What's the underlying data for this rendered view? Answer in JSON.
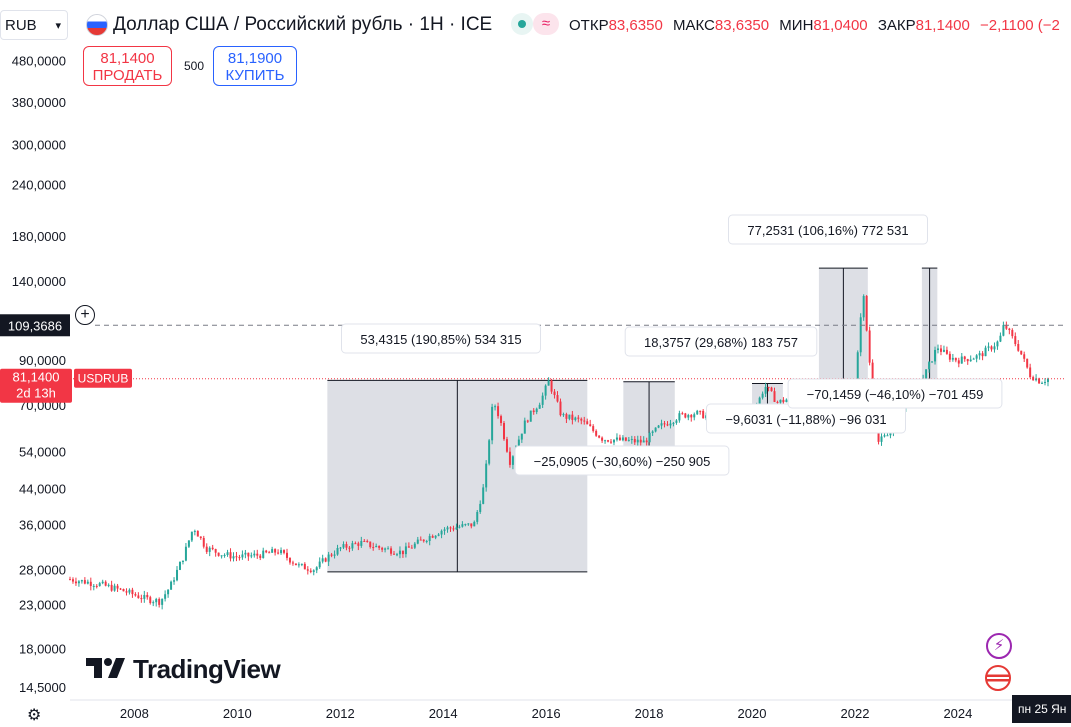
{
  "header": {
    "currency_select": "RUB",
    "title": "Доллар США / Российский рубль · 1H · ICE",
    "ohlc": [
      {
        "label": "ОТКР",
        "value": "83,6350"
      },
      {
        "label": "МАКС",
        "value": "83,6350"
      },
      {
        "label": "МИН",
        "value": "81,0400"
      },
      {
        "label": "ЗАКР",
        "value": "81,1400"
      }
    ],
    "change": "−2,1100 (−2"
  },
  "trade": {
    "sell_price": "81,1400",
    "sell_label": "ПРОДАТЬ",
    "quantity": "500",
    "buy_price": "81,1900",
    "buy_label": "КУПИТЬ"
  },
  "price_axis": {
    "ticks": [
      "480,0000",
      "380,0000",
      "300,0000",
      "240,0000",
      "180,0000",
      "140,0000",
      "90,0000",
      "70,0000",
      "54,0000",
      "44,0000",
      "36,0000",
      "28,0000",
      "23,0000",
      "18,0000",
      "14,5000"
    ],
    "crosshair_price": "109,3686",
    "last_price": "81,1400",
    "countdown": "2d 13h",
    "symbol_tag": "USDRUB"
  },
  "time_axis": {
    "ticks": [
      "2008",
      "2010",
      "2012",
      "2014",
      "2016",
      "2018",
      "2020",
      "2022",
      "2024",
      "20"
    ],
    "crosshair_date": "пн 25 Ян"
  },
  "measurements": [
    {
      "label": "53,4315 (190,85%) 534 315"
    },
    {
      "label": "−25,0905 (−30,60%) −250 905"
    },
    {
      "label": "18,3757 (29,68%) 183 757"
    },
    {
      "label": "−9,6031 (−11,88%) −96 031"
    },
    {
      "label": "77,2531 (106,16%) 772 531"
    },
    {
      "label": "−70,1459 (−46,10%) −701 459"
    }
  ],
  "branding": {
    "logo_text": "TradingView"
  },
  "colors": {
    "up": "#26a69a",
    "down": "#f23645",
    "accent": "#2962ff",
    "measure_fill": "#d1d4dc"
  },
  "chart_data": {
    "type": "candlestick",
    "title": "Доллар США / Российский рубль · 1H · ICE",
    "scale": "log",
    "ylim": [
      13.5,
      520
    ],
    "xlim": [
      2006.75,
      2026.1
    ],
    "x": [
      2006.75,
      2007.3,
      2007.8,
      2008.2,
      2008.5,
      2008.7,
      2008.95,
      2009.15,
      2009.4,
      2009.7,
      2010.0,
      2010.4,
      2010.8,
      2011.2,
      2011.5,
      2011.75,
      2012.0,
      2012.4,
      2012.8,
      2013.2,
      2013.6,
      2014.0,
      2014.3,
      2014.6,
      2014.8,
      2014.97,
      2015.1,
      2015.3,
      2015.6,
      2015.9,
      2016.05,
      2016.3,
      2016.7,
      2017.1,
      2017.5,
      2017.9,
      2018.2,
      2018.6,
      2018.9,
      2019.3,
      2019.7,
      2020.0,
      2020.25,
      2020.5,
      2020.9,
      2021.3,
      2021.7,
      2022.0,
      2022.15,
      2022.3,
      2022.45,
      2022.7,
      2023.0,
      2023.3,
      2023.6,
      2023.8,
      2024.0,
      2024.4,
      2024.8,
      2024.9,
      2025.2,
      2025.4,
      2025.6,
      2025.75
    ],
    "y": [
      26.5,
      25.8,
      24.8,
      23.8,
      23.4,
      25.5,
      30.0,
      35.5,
      31.5,
      30.5,
      30.0,
      30.3,
      31.0,
      28.5,
      28.0,
      30.0,
      31.5,
      32.5,
      31.5,
      30.8,
      33.0,
      35.0,
      35.5,
      36.0,
      45.0,
      72.0,
      65.0,
      51.0,
      64.0,
      72.0,
      80.0,
      66.0,
      64.0,
      58.0,
      57.5,
      57.0,
      62.0,
      66.0,
      67.0,
      65.0,
      64.0,
      65.5,
      78.0,
      71.0,
      74.0,
      74.0,
      72.5,
      75.0,
      135.0,
      85.0,
      57.0,
      60.0,
      72.0,
      80.0,
      97.0,
      92.0,
      90.0,
      92.0,
      100.0,
      110.0,
      95.0,
      83.0,
      80.0,
      81.14
    ],
    "measurements": [
      {
        "x": [
          2011.75,
          2016.8
        ],
        "y": [
          27.6,
          80.4
        ],
        "change": "53,4315 (190,85%) 534 315"
      },
      {
        "x": [
          2017.5,
          2018.5
        ],
        "y": [
          55.7,
          79.8
        ],
        "change": "−25,0905 (−30,60%) −250 905"
      },
      {
        "x": [
          2020.0,
          2020.6
        ],
        "y": [
          64.0,
          79.0
        ],
        "change": "18,3757 (29,68%) 183 757"
      },
      {
        "x": [
          2021.4,
          2021.6
        ],
        "y": [
          71.0,
          80.0
        ],
        "change": "−9,6031 (−11,88%) −96 031"
      },
      {
        "x": [
          2021.3,
          2022.25
        ],
        "y": [
          73.0,
          150.5
        ],
        "change": "77,2531 (106,16%) 772 531"
      },
      {
        "x": [
          2023.3,
          2023.6
        ],
        "y": [
          80.5,
          150.5
        ],
        "change": "−70,1459 (−46,10%) −701 459"
      }
    ]
  }
}
